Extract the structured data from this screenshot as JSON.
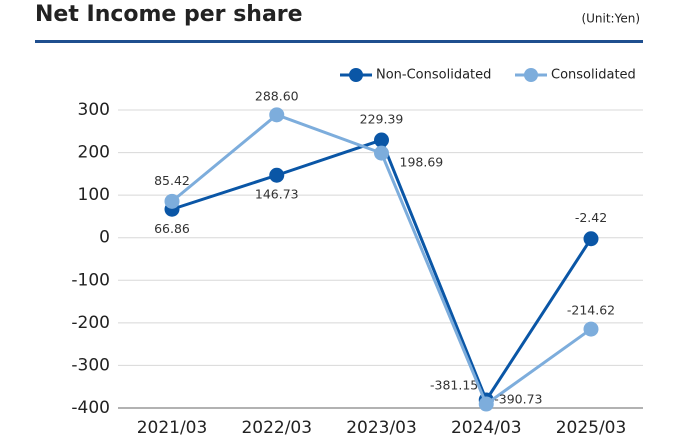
{
  "chart_data": {
    "type": "line",
    "title": "Net Income per share",
    "unit": "(Unit:Yen)",
    "categories": [
      "2021/03",
      "2022/03",
      "2023/03",
      "2024/03",
      "2025/03"
    ],
    "series": [
      {
        "name": "Non-Consolidated",
        "color": "#0a56a6",
        "values": [
          66.86,
          146.73,
          229.39,
          -381.15,
          -2.42
        ],
        "value_labels": [
          "66.86",
          "146.73",
          "229.39",
          "-381.15",
          "-2.42"
        ]
      },
      {
        "name": "Consolidated",
        "color": "#7daddc",
        "values": [
          85.42,
          288.6,
          198.69,
          -390.73,
          -214.62
        ],
        "value_labels": [
          "85.42",
          "288.60",
          "198.69",
          "-390.73",
          "-214.62"
        ]
      }
    ],
    "ylim": [
      -400,
      300
    ],
    "yticks": [
      -400,
      -300,
      -200,
      -100,
      0,
      100,
      200,
      300
    ],
    "grid": true,
    "legend": "top-right"
  }
}
